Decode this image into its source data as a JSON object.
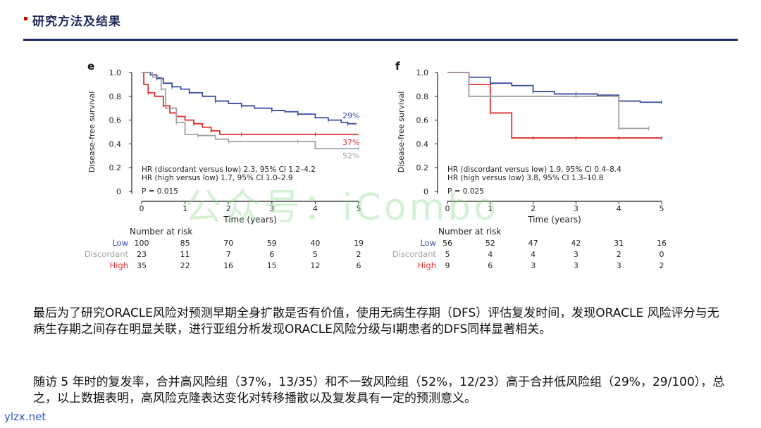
{
  "header": {
    "title": "研究方法及结果"
  },
  "watermark": "公众号：iCombo",
  "figure_left": {
    "panel_letter": "e",
    "ylabel": "Disease-free survival",
    "xlabel": "Time (years)",
    "yticks": [
      "1.0",
      "0.8",
      "0.6",
      "0.4",
      "0.2",
      "0"
    ],
    "xticks": [
      "0",
      "1",
      "2",
      "3",
      "4",
      "5"
    ],
    "hr1": "HR (discordant versus low) 2.3, 95% CI 1.2–4.2",
    "hr2": "HR (high versus low) 1.7, 95% CI 1.0–2.9",
    "pval": "P = 0.015",
    "end_labels": {
      "low": "29%",
      "high": "37%",
      "discordant": "52%"
    },
    "risk_title": "Number at risk",
    "risk": [
      {
        "label": "Low",
        "values": [
          "100",
          "85",
          "70",
          "59",
          "40",
          "19"
        ]
      },
      {
        "label": "Discordant",
        "values": [
          "23",
          "11",
          "7",
          "6",
          "5",
          "2"
        ]
      },
      {
        "label": "High",
        "values": [
          "35",
          "22",
          "16",
          "15",
          "12",
          "6"
        ]
      }
    ]
  },
  "figure_right": {
    "panel_letter": "f",
    "ylabel": "Disease-free survival",
    "xlabel": "Time (years)",
    "yticks": [
      "1.0",
      "0.8",
      "0.6",
      "0.4",
      "0.2",
      "0"
    ],
    "xticks": [
      "0",
      "1",
      "2",
      "3",
      "4",
      "5"
    ],
    "hr1": "HR (discordant versus low) 1.9, 95% CI 0.4–8.4",
    "hr2": "HR (high versus low) 3.8, 95% CI 1.3–10.8",
    "pval": "P = 0.025",
    "risk_title": "Number at risk",
    "risk": [
      {
        "label": "Low",
        "values": [
          "56",
          "52",
          "47",
          "42",
          "31",
          "16"
        ]
      },
      {
        "label": "Discordant",
        "values": [
          "5",
          "4",
          "4",
          "3",
          "2",
          "0"
        ]
      },
      {
        "label": "High",
        "values": [
          "9",
          "6",
          "3",
          "3",
          "3",
          "2"
        ]
      }
    ]
  },
  "colors": {
    "low": "#3b4ea0",
    "high": "#e03030",
    "discordant": "#a0a0a0"
  },
  "chart_data": [
    {
      "type": "line",
      "title": "e",
      "xlabel": "Time (years)",
      "ylabel": "Disease-free survival",
      "xlim": [
        0,
        5
      ],
      "ylim": [
        0,
        1
      ],
      "series": [
        {
          "name": "Low",
          "color": "#3b4ea0",
          "x": [
            0,
            0.2,
            0.35,
            0.5,
            0.7,
            0.9,
            1.1,
            1.4,
            1.7,
            2.0,
            2.3,
            2.6,
            3.0,
            3.3,
            3.6,
            4.0,
            4.3,
            4.6,
            4.75,
            4.95
          ],
          "y": [
            1.0,
            0.98,
            0.95,
            0.91,
            0.88,
            0.86,
            0.83,
            0.8,
            0.76,
            0.74,
            0.72,
            0.7,
            0.68,
            0.67,
            0.65,
            0.62,
            0.6,
            0.58,
            0.57,
            0.57
          ]
        },
        {
          "name": "High",
          "color": "#e03030",
          "x": [
            0,
            0.05,
            0.15,
            0.3,
            0.5,
            0.65,
            0.8,
            1.0,
            1.2,
            1.4,
            1.6,
            1.8,
            2.3,
            3.0,
            4.0,
            5.0
          ],
          "y": [
            1.0,
            0.9,
            0.83,
            0.8,
            0.72,
            0.66,
            0.63,
            0.6,
            0.57,
            0.54,
            0.51,
            0.48,
            0.48,
            0.48,
            0.48,
            0.48
          ]
        },
        {
          "name": "Discordant",
          "color": "#a0a0a0",
          "x": [
            0,
            0.25,
            0.45,
            0.55,
            0.8,
            1.0,
            1.3,
            1.7,
            2.0,
            3.0,
            3.6,
            4.0,
            5.0
          ],
          "y": [
            1.0,
            0.96,
            0.86,
            0.7,
            0.58,
            0.48,
            0.47,
            0.44,
            0.42,
            0.42,
            0.42,
            0.36,
            0.36
          ]
        }
      ]
    },
    {
      "type": "line",
      "title": "f",
      "xlabel": "Time (years)",
      "ylabel": "Disease-free survival",
      "xlim": [
        0,
        5
      ],
      "ylim": [
        0,
        1
      ],
      "series": [
        {
          "name": "Low",
          "color": "#3b4ea0",
          "x": [
            0,
            0.5,
            1.0,
            1.5,
            2.0,
            2.5,
            3.0,
            3.5,
            4.0,
            4.5,
            5.0
          ],
          "y": [
            1.0,
            0.96,
            0.91,
            0.89,
            0.84,
            0.82,
            0.82,
            0.81,
            0.76,
            0.75,
            0.75
          ]
        },
        {
          "name": "High",
          "color": "#e03030",
          "x": [
            0,
            0.5,
            1.0,
            1.5,
            2.0,
            2.5,
            3.0,
            3.5,
            4.0,
            4.5,
            5.0
          ],
          "y": [
            1.0,
            0.9,
            0.66,
            0.45,
            0.45,
            0.45,
            0.45,
            0.45,
            0.45,
            0.45,
            0.45
          ]
        },
        {
          "name": "Discordant",
          "color": "#a0a0a0",
          "x": [
            0,
            0.5,
            1.0,
            2.0,
            3.0,
            3.5,
            3.9,
            4.0,
            4.7
          ],
          "y": [
            1.0,
            0.8,
            0.8,
            0.8,
            0.8,
            0.8,
            0.8,
            0.53,
            0.53
          ]
        }
      ]
    }
  ],
  "text": {
    "paragraph1": "最后为了研究ORACLE风险对预测早期全身扩散是否有价值，使用无病生存期（DFS）评估复发时间，发现ORACLE 风险评分与无病生存期之间存在明显关联，进行亚组分析发现ORACLE风险分级与I期患者的DFS同样显著相关。",
    "paragraph2": "随访 5 年时的复发率，合并高风险组（37%，13/35）和不一致风险组（52%，12/23）高于合并低风险组（29%，29/100），总之，以上数据表明，高风险克隆表达变化对转移播散以及复发具有一定的预测意义。"
  },
  "footer": "ylzx.net"
}
